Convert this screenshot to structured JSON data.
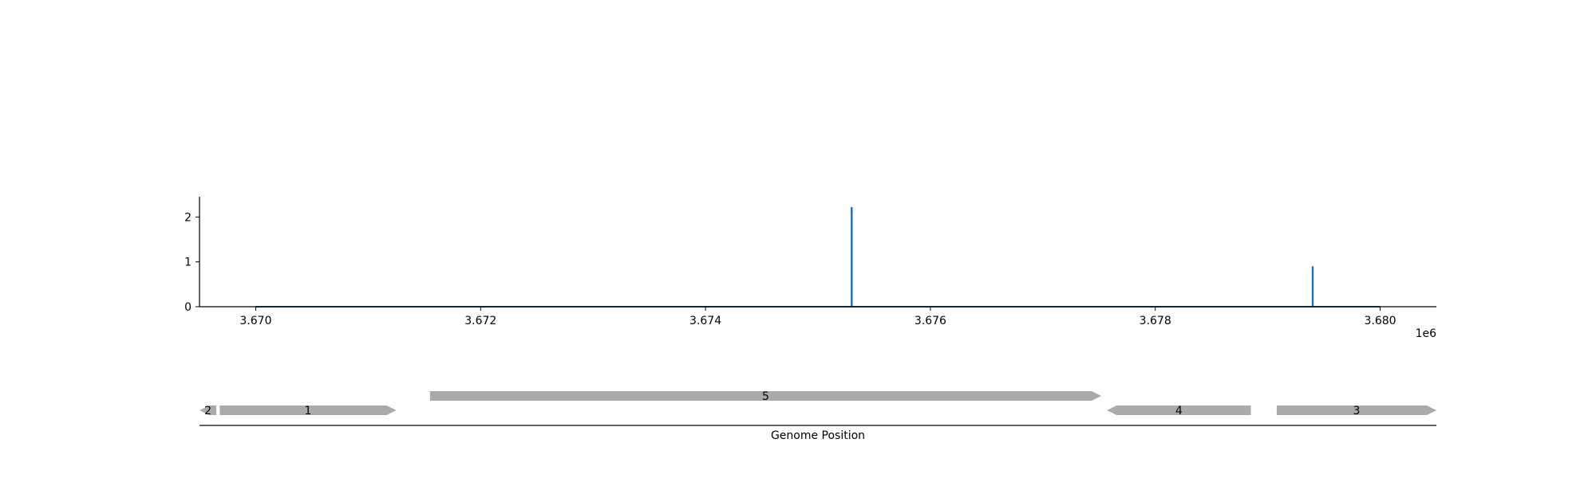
{
  "chart_data": [
    {
      "type": "line",
      "title": "",
      "xlabel": "",
      "ylabel": "",
      "x_offset_label": "1e6",
      "x_unit_multiplier": 1000000,
      "xlim": [
        3669500,
        3680500
      ],
      "ylim": [
        0,
        2.45
      ],
      "xticks": [
        3670000,
        3672000,
        3674000,
        3676000,
        3678000,
        3680000
      ],
      "xtick_labels": [
        "3.670",
        "3.672",
        "3.674",
        "3.676",
        "3.678",
        "3.680"
      ],
      "yticks": [
        0,
        1,
        2
      ],
      "ytick_labels": [
        "0",
        "1",
        "2"
      ],
      "grid": false,
      "series": [
        {
          "color": "#1f6fb4",
          "baseline": [
            3670000,
            3680000
          ],
          "peaks": [
            {
              "x": 3675300,
              "y": 2.22
            },
            {
              "x": 3679400,
              "y": 0.9
            }
          ]
        }
      ]
    },
    {
      "type": "gene-track",
      "xlabel": "Genome Position",
      "xlim": [
        3669500,
        3680500
      ],
      "color": "#aaaaaa",
      "genes": [
        {
          "label": "2",
          "start": 3669500,
          "end": 3669650,
          "strand": "-",
          "row": 0
        },
        {
          "label": "1",
          "start": 3669680,
          "end": 3671250,
          "strand": "+",
          "row": 0
        },
        {
          "label": "5",
          "start": 3671550,
          "end": 3677520,
          "strand": "+",
          "row": 1
        },
        {
          "label": "4",
          "start": 3677570,
          "end": 3678850,
          "strand": "-",
          "row": 0
        },
        {
          "label": "3",
          "start": 3679080,
          "end": 3680500,
          "strand": "+",
          "row": 0
        }
      ]
    }
  ]
}
